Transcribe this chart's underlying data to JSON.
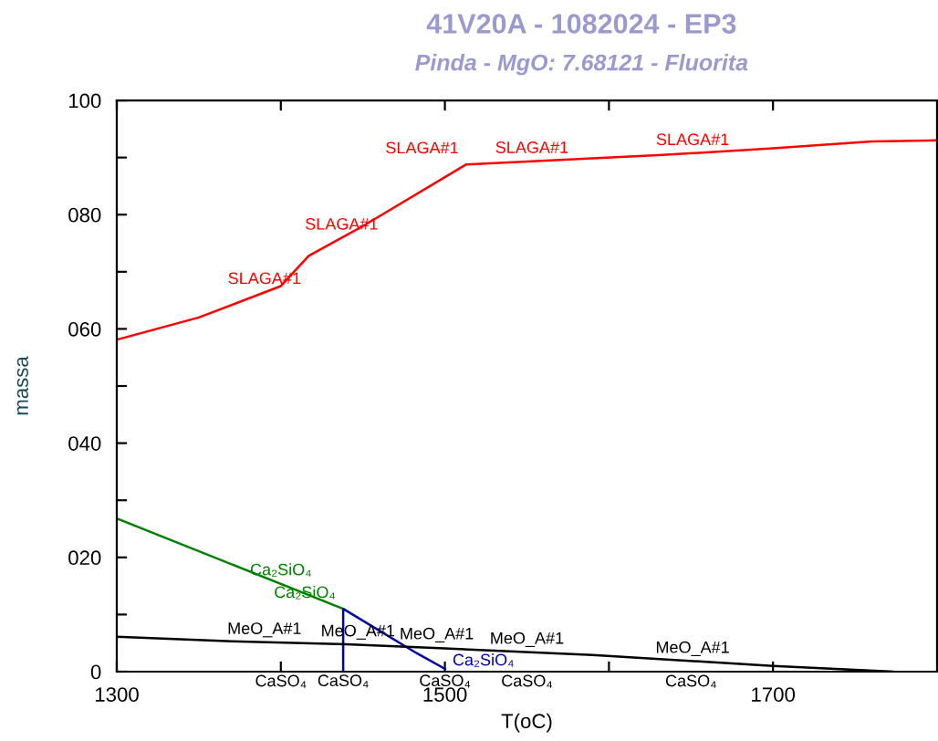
{
  "chart_data": {
    "type": "line",
    "title": "41V20A - 1082024 - EP3",
    "subtitle": "Pinda - MgO: 7.68121 - Fluorita",
    "xlabel": "T(oC)",
    "ylabel": "massa",
    "series": [
      {
        "color": "#ff0000",
        "x": [
          1300,
          1350,
          1400,
          1417,
          1450,
          1513,
          1550,
          1630,
          1700,
          1760,
          1800
        ],
        "values": [
          58.1,
          62,
          67.5,
          72.8,
          78,
          88.8,
          89.3,
          90.4,
          91.6,
          92.8,
          93
        ]
      },
      {
        "color": "#008000",
        "x": [
          1300,
          1438
        ],
        "values": [
          26.8,
          11
        ]
      },
      {
        "color": "#0000aa",
        "x": [
          1438,
          1438,
          1483,
          1500
        ],
        "values": [
          0,
          11,
          3.2,
          0.5
        ]
      },
      {
        "color": "#000000",
        "x": [
          1300,
          1370,
          1440,
          1490,
          1590,
          1700,
          1773
        ],
        "values": [
          6.1,
          5.3,
          4.8,
          4.2,
          2.9,
          1.0,
          0
        ]
      }
    ],
    "annotations": [
      {
        "text": "SLAGA#1",
        "x": 1390,
        "y": 66.4
      },
      {
        "text": "SLAGA#1",
        "x": 1437,
        "y": 75.9
      },
      {
        "text": "SLAGA#1",
        "x": 1513,
        "y": 88.8
      },
      {
        "text": "SLAGA#1",
        "x": 1553,
        "y": 89.3
      },
      {
        "text": "SLAGA#1",
        "x": 1651,
        "y": 90.7
      },
      {
        "text": "Ca₂SiO₄",
        "x": 1400,
        "y": 15.4
      },
      {
        "text": "Ca₂SiO₄",
        "x": 1438,
        "y": 11
      },
      {
        "text": "Ca₂SiO₄",
        "x": 1500,
        "y": 0.5
      },
      {
        "text": "MeO_A#1",
        "x": 1390,
        "y": 5.1
      },
      {
        "text": "MeO_A#1",
        "x": 1447,
        "y": 4.7
      },
      {
        "text": "MeO_A#1",
        "x": 1495,
        "y": 4.2
      },
      {
        "text": "MeO_A#1",
        "x": 1550,
        "y": 3.4
      },
      {
        "text": "MeO_A#1",
        "x": 1651,
        "y": 1.8
      },
      {
        "text": "CaSO₄",
        "x": 1438,
        "y": 0
      },
      {
        "text": "CaSO₄",
        "x": 1500,
        "y": 0.5
      },
      "CaSO₄",
      "CaSO₄",
      "CaSO₄"
    ],
    "xlim": [
      1300,
      1800
    ],
    "ylim": [
      0,
      100
    ],
    "xticks": [
      1300,
      {
        "value": 1400,
        "label": null
      },
      1500,
      {
        "value": 1600,
        "label": null
      },
      1700
    ],
    "yticks": [
      {
        "value": 0,
        "label": "0"
      },
      {
        "value": 10,
        "label": null
      },
      {
        "value": 20,
        "label": "020"
      },
      {
        "value": 30,
        "label": null
      },
      {
        "value": 40,
        "label": "040"
      },
      {
        "value": 50,
        "label": null
      },
      {
        "value": 60,
        "label": "060"
      },
      {
        "value": 70,
        "label": null
      },
      {
        "value": 80,
        "label": "080"
      },
      {
        "value": 90,
        "label": null
      },
      100
    ],
    "grid": false,
    "legend": false
  }
}
